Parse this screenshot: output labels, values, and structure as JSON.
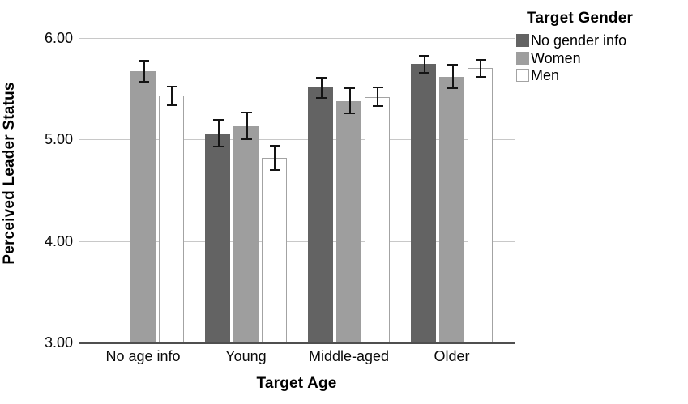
{
  "chart_data": {
    "type": "bar",
    "title": "",
    "xlabel": "Target Age",
    "ylabel": "Perceived Leader Status",
    "categories": [
      "No age info",
      "Young",
      "Middle-aged",
      "Older"
    ],
    "yticks": [
      "3.00",
      "4.00",
      "5.00",
      "6.00"
    ],
    "ylim": [
      3.0,
      6.31
    ],
    "grid": "horizontal",
    "legend_title": "Target Gender",
    "legend_position": "outside-top-right",
    "error_bars": true,
    "series": [
      {
        "name": "No gender info",
        "color": "#636363",
        "border": "#636363",
        "values": [
          null,
          5.06,
          5.51,
          5.74
        ],
        "errors": [
          null,
          0.14,
          0.11,
          0.09
        ]
      },
      {
        "name": "Women",
        "color": "#9e9e9e",
        "border": "#9e9e9e",
        "values": [
          5.67,
          5.13,
          5.38,
          5.62
        ],
        "errors": [
          0.11,
          0.14,
          0.13,
          0.12
        ]
      },
      {
        "name": "Men",
        "color": "#ffffff",
        "border": "#a3a3a3",
        "values": [
          5.43,
          4.82,
          5.42,
          5.7
        ],
        "errors": [
          0.1,
          0.13,
          0.1,
          0.09
        ]
      }
    ]
  }
}
